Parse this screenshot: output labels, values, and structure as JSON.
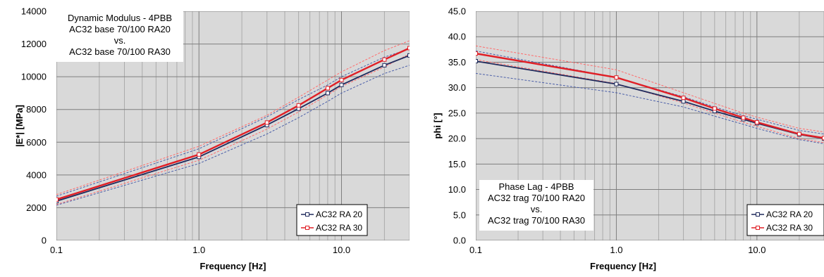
{
  "colors": {
    "plot_background": "#d9d9d9",
    "grid_major": "#7f7f7f",
    "grid_minor": "#ababab",
    "ra20": "#1f2a5c",
    "ra30": "#e01f26",
    "ra20_band": "#4a5ea8",
    "ra30_band": "#ff6b6b"
  },
  "chart_data": [
    {
      "type": "line",
      "title": "",
      "annotation": [
        "Dynamic Modulus - 4PBB",
        "AC32 base 70/100 RA20",
        "vs.",
        "AC32 base 70/100 RA30"
      ],
      "xlabel": "Frequency [Hz]",
      "ylabel": "|E*| [MPa]",
      "x_scale": "log",
      "xlim": [
        0.1,
        30
      ],
      "ylim": [
        0,
        14000
      ],
      "x_ticks": [
        "0.1",
        "1.0",
        "10.0"
      ],
      "y_ticks": [
        "0",
        "2000",
        "4000",
        "6000",
        "8000",
        "10000",
        "12000",
        "14000"
      ],
      "grid": true,
      "legend": {
        "placement": "bottom-right",
        "entries": [
          "AC32 RA 20",
          "AC32 RA 30"
        ]
      },
      "series": [
        {
          "name": "AC32 RA 20",
          "x": [
            0.1,
            1,
            3,
            5,
            8,
            10,
            20,
            30
          ],
          "y": [
            2400,
            5100,
            7050,
            8050,
            9000,
            9500,
            10700,
            11300
          ]
        },
        {
          "name": "AC32 RA 30",
          "x": [
            0.1,
            1,
            3,
            5,
            8,
            10,
            20,
            30
          ],
          "y": [
            2500,
            5250,
            7200,
            8250,
            9300,
            9800,
            11050,
            11750
          ]
        }
      ],
      "bands": [
        {
          "of": "AC32 RA 20",
          "upper": [
            2700,
            5600,
            7550,
            8600,
            9500,
            10000,
            11200,
            11700
          ],
          "lower": [
            2150,
            4700,
            6500,
            7500,
            8500,
            9000,
            10200,
            10700
          ]
        },
        {
          "of": "AC32 RA 30",
          "upper": [
            2800,
            5750,
            7650,
            8750,
            9800,
            10300,
            11600,
            12200
          ],
          "lower": [
            2200,
            4900,
            6800,
            7850,
            8900,
            9400,
            10600,
            11400
          ]
        }
      ]
    },
    {
      "type": "line",
      "title": "",
      "annotation": [
        "Phase Lag - 4PBB",
        "AC32 trag 70/100 RA20",
        "vs.",
        "AC32 trag 70/100 RA30"
      ],
      "xlabel": "Frequency [Hz]",
      "ylabel": "phi [°]",
      "x_scale": "log",
      "xlim": [
        0.1,
        30
      ],
      "ylim": [
        0,
        45
      ],
      "x_ticks": [
        "0.1",
        "1.0",
        "10.0"
      ],
      "y_ticks": [
        "0.0",
        "5.0",
        "10.0",
        "15.0",
        "20.0",
        "25.0",
        "30.0",
        "35.0",
        "40.0",
        "45.0"
      ],
      "grid": true,
      "legend": {
        "placement": "bottom-right",
        "entries": [
          "AC32 RA 20",
          "AC32 RA 30"
        ]
      },
      "series": [
        {
          "name": "AC32 RA 20",
          "x": [
            0.1,
            1,
            3,
            5,
            8,
            10,
            20,
            30
          ],
          "y": [
            35.2,
            30.7,
            27.3,
            25.4,
            23.8,
            23.0,
            20.8,
            20.0
          ]
        },
        {
          "name": "AC32 RA 30",
          "x": [
            0.1,
            1,
            3,
            5,
            8,
            10,
            20,
            30
          ],
          "y": [
            36.7,
            32.0,
            28.0,
            25.9,
            24.1,
            23.2,
            20.9,
            20.1
          ]
        }
      ],
      "bands": [
        {
          "of": "AC32 RA 20",
          "upper": [
            37.2,
            32.0,
            28.2,
            26.2,
            24.5,
            23.8,
            21.6,
            20.9
          ],
          "lower": [
            32.8,
            29.0,
            26.2,
            24.4,
            22.8,
            22.0,
            19.8,
            19.0
          ]
        },
        {
          "of": "AC32 RA 30",
          "upper": [
            38.2,
            33.5,
            29.0,
            26.9,
            25.0,
            24.2,
            22.0,
            21.3
          ],
          "lower": [
            35.5,
            30.8,
            27.0,
            25.0,
            23.2,
            22.4,
            20.0,
            19.2
          ]
        }
      ]
    }
  ]
}
